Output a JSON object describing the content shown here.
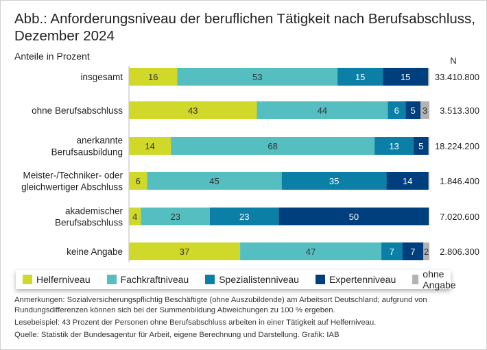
{
  "title": "Abb.: Anforderungsniveau der beruflichen Tätigkeit nach Berufsabschluss, Dezember 2024",
  "subtitle": "Anteile in Prozent",
  "chart_data": {
    "type": "bar",
    "orientation": "horizontal-stacked-100",
    "n_header": "N",
    "categories": [
      [
        "insgesamt"
      ],
      [
        "ohne Berufsabschluss"
      ],
      [
        "anerkannte",
        "Berufsausbildung"
      ],
      [
        "Meister-/Techniker- oder",
        "gleichwertiger Abschluss"
      ],
      [
        "akademischer",
        "Berufsabschluss"
      ],
      [
        "keine Angabe"
      ]
    ],
    "n_values": [
      "33.410.800",
      "3.513.300",
      "18.224.200",
      "1.846.400",
      "7.020.600",
      "2.806.300"
    ],
    "series": [
      {
        "name": "Helferniveau",
        "color": "#d0d82a",
        "values": [
          16,
          43,
          14,
          6,
          4,
          37
        ]
      },
      {
        "name": "Fachkraftniveau",
        "color": "#55bec0",
        "values": [
          53,
          44,
          68,
          45,
          23,
          47
        ]
      },
      {
        "name": "Spezialistenniveau",
        "color": "#0c7fa6",
        "values": [
          15,
          6,
          13,
          35,
          23,
          7
        ]
      },
      {
        "name": "Expertenniveau",
        "color": "#003f7d",
        "values": [
          15,
          5,
          5,
          14,
          50,
          7
        ]
      },
      {
        "name": "ohne Angabe",
        "color": "#b3b3b3",
        "values": [
          0.4,
          3,
          0.3,
          0.3,
          0.2,
          2
        ]
      }
    ],
    "label_min": 2,
    "xlim": [
      0,
      100
    ]
  },
  "notes": [
    "Anmerkungen: Sozialversicherungspflichtig Beschäftigte (ohne Auszubildende) am Arbeitsort Deutschland; aufgrund von Rundungsdifferenzen können sich bei der Summenbildung Abweichungen zu 100 % ergeben.",
    "Lesebeispiel: 43 Prozent der Personen ohne Berufsabschluss arbeiten in einer Tätigkeit auf Helferniveau.",
    "Quelle: Statistik der Bundesagentur für Arbeit, eigene Berechnung und Darstellung. Grafik: IAB"
  ]
}
